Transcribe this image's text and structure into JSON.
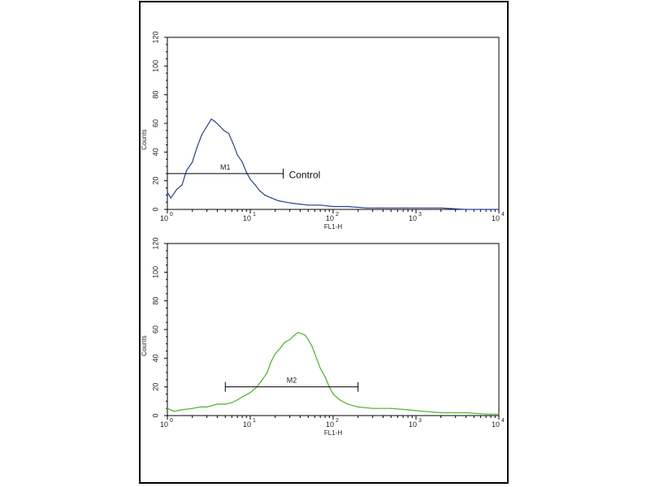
{
  "figure": {
    "frame_color": "#000000"
  },
  "chart_data": [
    {
      "type": "line",
      "title": "",
      "xlabel": "FL1-H",
      "ylabel": "Counts",
      "xscale": "log",
      "xlim": [
        1,
        10000
      ],
      "ylim": [
        0,
        120
      ],
      "x_ticks": [
        {
          "base": "10",
          "exp": "0"
        },
        {
          "base": "10",
          "exp": "1"
        },
        {
          "base": "10",
          "exp": "2"
        },
        {
          "base": "10",
          "exp": "3"
        },
        {
          "base": "10",
          "exp": "4"
        }
      ],
      "y_ticks": [
        "0",
        "20",
        "40",
        "60",
        "80",
        "100",
        "120"
      ],
      "series_color": "#2a3f9a",
      "series": [
        {
          "name": "",
          "x": [
            1.0,
            1.1,
            1.3,
            1.5,
            1.7,
            2.0,
            2.3,
            2.6,
            3.0,
            3.4,
            3.8,
            4.3,
            4.8,
            5.5,
            6.2,
            7.0,
            8.0,
            9.0,
            10.0,
            11.5,
            13.0,
            15.0,
            18.0,
            22.0,
            27.0,
            35.0,
            50.0,
            70.0,
            100.0,
            150.0,
            250.0,
            400.0,
            700.0,
            1000.0,
            2000.0,
            4000.0,
            10000.0
          ],
          "y": [
            12,
            8,
            14,
            17,
            27,
            33,
            44,
            52,
            58,
            63,
            61,
            58,
            55,
            53,
            46,
            38,
            33,
            26,
            21,
            17,
            13,
            10,
            8,
            6,
            5,
            4,
            3,
            3,
            2,
            2,
            1,
            1,
            1,
            1,
            1,
            0,
            0
          ]
        }
      ],
      "markers": [
        {
          "label": "M1",
          "x_start": 1.0,
          "x_end": 25.0,
          "y": 25
        }
      ],
      "annotations": [
        {
          "text": "Control",
          "x": 28.0,
          "y": 24
        }
      ]
    },
    {
      "type": "line",
      "title": "",
      "xlabel": "FL1-H",
      "ylabel": "Counts",
      "xscale": "log",
      "xlim": [
        1,
        10000
      ],
      "ylim": [
        0,
        120
      ],
      "x_ticks": [
        {
          "base": "10",
          "exp": "0"
        },
        {
          "base": "10",
          "exp": "1"
        },
        {
          "base": "10",
          "exp": "2"
        },
        {
          "base": "10",
          "exp": "3"
        },
        {
          "base": "10",
          "exp": "4"
        }
      ],
      "y_ticks": [
        "0",
        "20",
        "40",
        "60",
        "80",
        "100",
        "120"
      ],
      "series_color": "#4ab326",
      "series": [
        {
          "name": "",
          "x": [
            1.0,
            1.2,
            1.5,
            2.0,
            2.5,
            3.0,
            4.0,
            5.0,
            6.0,
            7.0,
            8.0,
            10.0,
            12.0,
            14.0,
            16.0,
            18.0,
            20.0,
            23.0,
            26.0,
            30.0,
            34.0,
            38.0,
            42.0,
            46.0,
            50.0,
            56.0,
            63.0,
            70.0,
            80.0,
            90.0,
            100.0,
            120.0,
            150.0,
            200.0,
            300.0,
            500.0,
            800.0,
            1200.0,
            2000.0,
            4000.0,
            7000.0,
            10000.0
          ],
          "y": [
            5,
            3,
            4,
            5,
            6,
            6,
            8,
            8,
            9,
            11,
            13,
            16,
            20,
            25,
            30,
            38,
            43,
            47,
            51,
            53,
            56,
            58,
            57,
            56,
            53,
            48,
            40,
            33,
            27,
            20,
            15,
            11,
            8,
            6,
            5,
            5,
            4,
            3,
            2,
            2,
            1,
            1
          ]
        }
      ],
      "markers": [
        {
          "label": "M2",
          "x_start": 5.0,
          "x_end": 200.0,
          "y": 20
        }
      ],
      "annotations": []
    }
  ]
}
